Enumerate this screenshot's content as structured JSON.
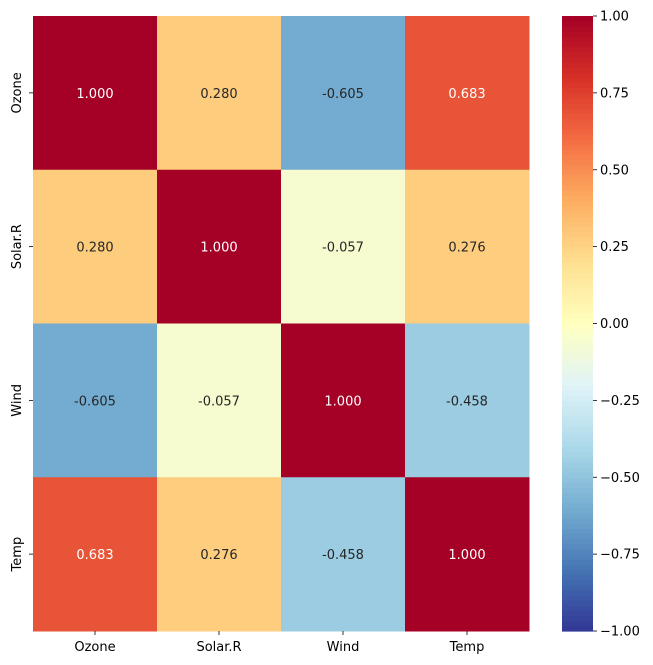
{
  "chart_data": {
    "type": "heatmap",
    "title": "",
    "xlabel": "",
    "ylabel": "",
    "x_categories": [
      "Ozone",
      "Solar.R",
      "Wind",
      "Temp"
    ],
    "y_categories": [
      "Ozone",
      "Solar.R",
      "Wind",
      "Temp"
    ],
    "values": [
      [
        1.0,
        0.28,
        -0.605,
        0.683
      ],
      [
        0.28,
        1.0,
        -0.057,
        0.276
      ],
      [
        -0.605,
        -0.057,
        1.0,
        -0.458
      ],
      [
        0.683,
        0.276,
        -0.458,
        1.0
      ]
    ],
    "value_labels": [
      [
        "1.000",
        "0.280",
        "-0.605",
        "0.683"
      ],
      [
        "0.280",
        "1.000",
        "-0.057",
        "0.276"
      ],
      [
        "-0.605",
        "-0.057",
        "1.000",
        "-0.458"
      ],
      [
        "0.683",
        "0.276",
        "-0.458",
        "1.000"
      ]
    ],
    "colormap": "RdYlBu_r",
    "vmin": -1.0,
    "vmax": 1.0,
    "colorbar_ticks": [
      1.0,
      0.75,
      0.5,
      0.25,
      0.0,
      -0.25,
      -0.5,
      -0.75,
      -1.0
    ],
    "colorbar_tick_labels": [
      "1.00",
      "0.75",
      "0.50",
      "0.25",
      "0.00",
      "−0.25",
      "−0.50",
      "−0.75",
      "−1.00"
    ],
    "grid": false,
    "legend": "colorbar-right"
  }
}
